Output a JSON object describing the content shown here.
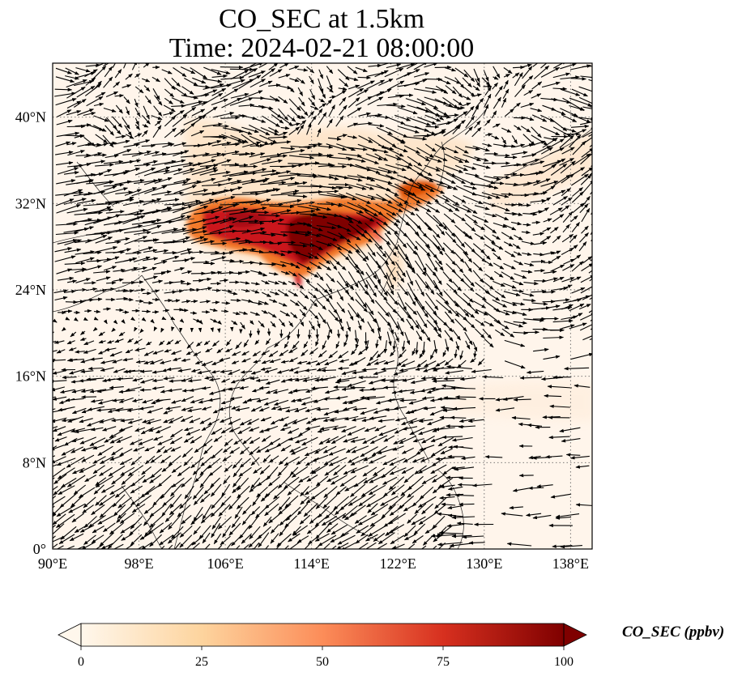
{
  "title": {
    "line1": "CO_SEC at 1.5km",
    "line2": "Time: 2024-02-21 08:00:00"
  },
  "map": {
    "projection": "PlateCarree",
    "lon_range": [
      90,
      140
    ],
    "lat_range": [
      0,
      45
    ],
    "lon_ticks": [
      "90°E",
      "98°E",
      "106°E",
      "114°E",
      "122°E",
      "130°E",
      "138°E"
    ],
    "lat_ticks": [
      "0°",
      "8°N",
      "16°N",
      "24°N",
      "32°N",
      "40°N"
    ],
    "gridlines": "dotted",
    "coastlines": true,
    "background_color": "#fff5eb",
    "plume_colors": [
      "#fdd0a2",
      "#fd8d3c",
      "#d94801",
      "#a50f15",
      "#7f0000"
    ],
    "vector_color": "#000000",
    "wind_pattern": "westerly jet 24–38°N; anticyclone NE of Philippines; northeasterly flow over South China Sea"
  },
  "colorbar": {
    "label": "CO_SEC (ppbv)",
    "ticks": [
      "0",
      "25",
      "50",
      "75",
      "100"
    ],
    "vmin": 0,
    "vmax": 100,
    "extend": "both",
    "colormap": "OrRd"
  }
}
